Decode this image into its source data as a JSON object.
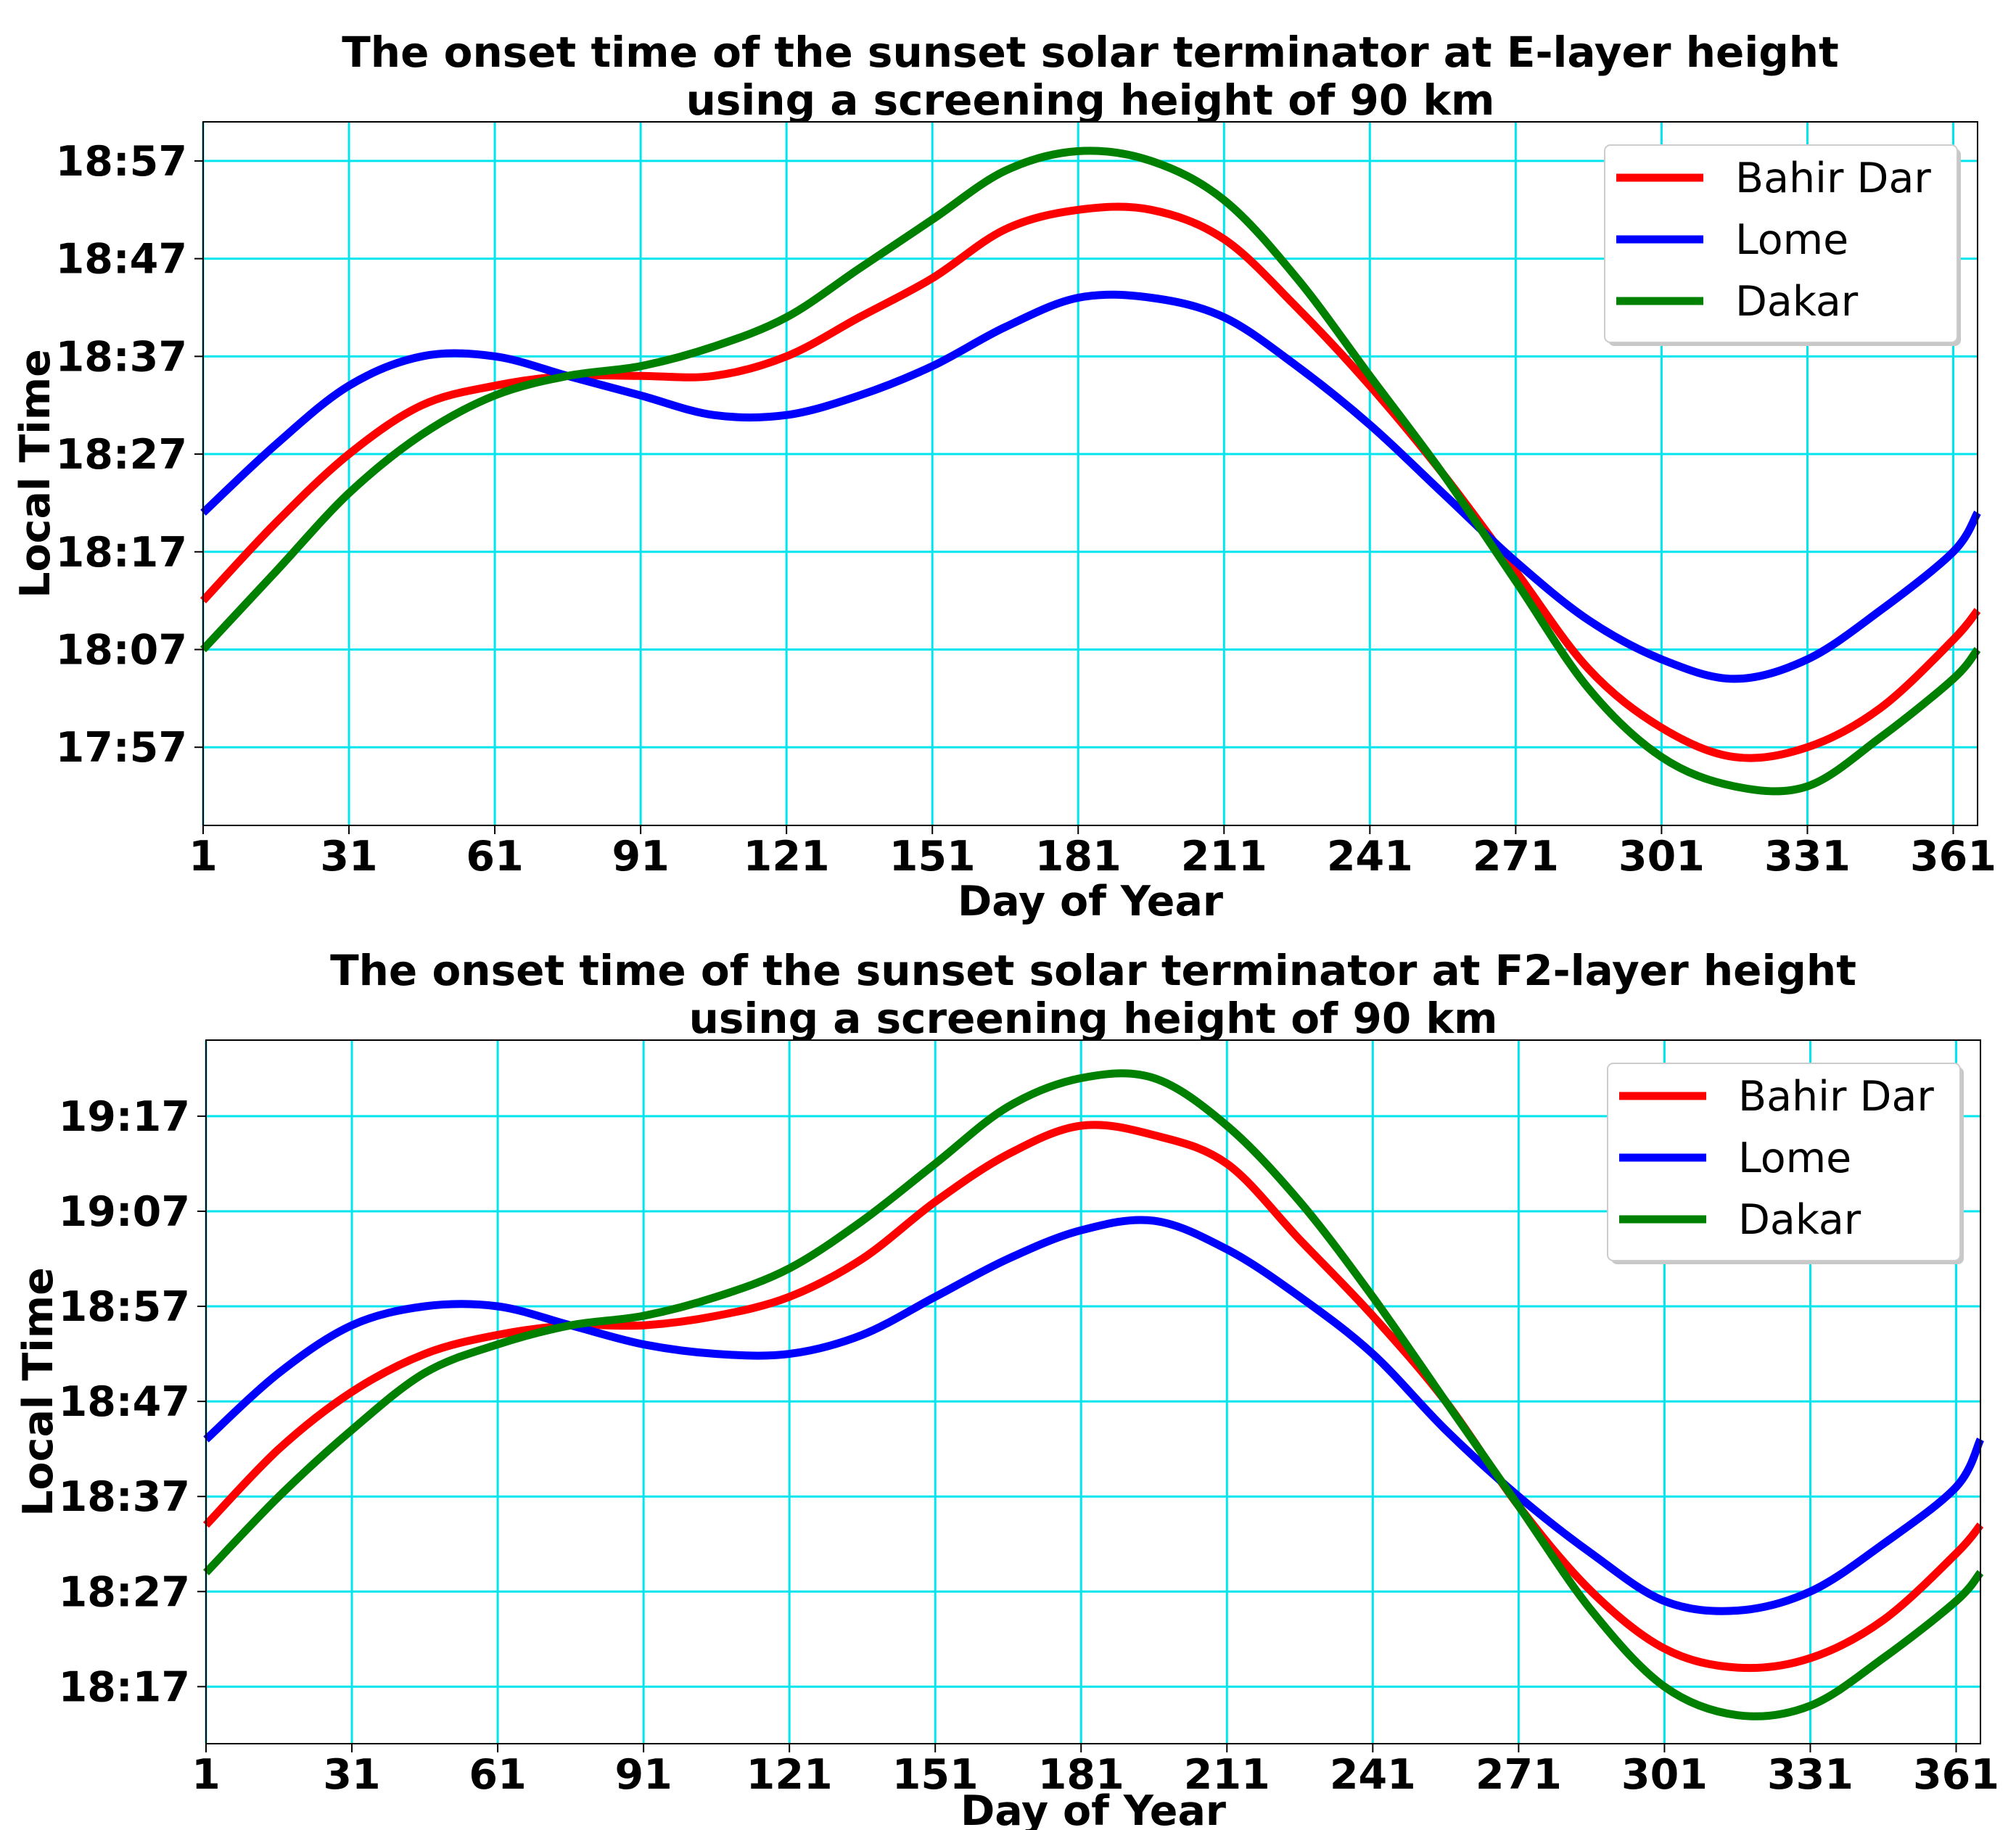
{
  "chart_data": [
    {
      "type": "line",
      "title": "The onset time of the sunset solar terminator at E-layer height",
      "subtitle": "using a screening height of 90 km",
      "xlabel": "Day of Year",
      "ylabel": "Local Time",
      "xlim": [
        1,
        366
      ],
      "xticks": [
        1,
        31,
        61,
        91,
        121,
        151,
        181,
        211,
        241,
        271,
        301,
        331,
        361
      ],
      "ylim": [
        "17:49",
        "19:01"
      ],
      "yticks": [
        "17:57",
        "18:07",
        "18:17",
        "18:27",
        "18:37",
        "18:47",
        "18:57"
      ],
      "grid": true,
      "grid_color": "#00e5ee",
      "legend_position": "top-right",
      "x": [
        1,
        16,
        31,
        46,
        61,
        76,
        91,
        106,
        121,
        136,
        151,
        166,
        181,
        196,
        211,
        226,
        241,
        256,
        271,
        286,
        301,
        316,
        331,
        346,
        361,
        366
      ],
      "series": [
        {
          "name": "Bahir Dar",
          "color": "#ff0000",
          "values": [
            "18:12",
            "18:20",
            "18:27",
            "18:32",
            "18:34",
            "18:35",
            "18:35",
            "18:35",
            "18:37",
            "18:41",
            "18:45",
            "18:50",
            "18:52",
            "18:52",
            "18:49",
            "18:42",
            "18:34",
            "18:25",
            "18:15",
            "18:05",
            "17:59",
            "17:56",
            "17:57",
            "18:01",
            "18:08",
            "18:11"
          ]
        },
        {
          "name": "Lome",
          "color": "#0000ff",
          "values": [
            "18:21",
            "18:28",
            "18:34",
            "18:37",
            "18:37",
            "18:35",
            "18:33",
            "18:31",
            "18:31",
            "18:33",
            "18:36",
            "18:40",
            "18:43",
            "18:43",
            "18:41",
            "18:36",
            "18:30",
            "18:23",
            "18:16",
            "18:10",
            "18:06",
            "18:04",
            "18:06",
            "18:11",
            "18:17",
            "18:21"
          ]
        },
        {
          "name": "Dakar",
          "color": "#008000",
          "values": [
            "18:07",
            "18:15",
            "18:23",
            "18:29",
            "18:33",
            "18:35",
            "18:36",
            "18:38",
            "18:41",
            "18:46",
            "18:51",
            "18:56",
            "18:58",
            "18:57",
            "18:53",
            "18:45",
            "18:35",
            "18:25",
            "18:14",
            "18:03",
            "17:56",
            "17:53",
            "17:53",
            "17:58",
            "18:04",
            "18:07"
          ]
        }
      ]
    },
    {
      "type": "line",
      "title": "The onset time of the sunset solar terminator at F2-layer height",
      "subtitle": "using a screening height of 90 km",
      "xlabel": "Day of Year",
      "ylabel": "Local Time",
      "xlim": [
        1,
        366
      ],
      "xticks": [
        1,
        31,
        61,
        91,
        121,
        151,
        181,
        211,
        241,
        271,
        301,
        331,
        361
      ],
      "ylim": [
        "18:11",
        "19:25"
      ],
      "yticks": [
        "18:17",
        "18:27",
        "18:37",
        "18:47",
        "18:57",
        "19:07",
        "19:17"
      ],
      "grid": true,
      "grid_color": "#00e5ee",
      "legend_position": "top-right",
      "x": [
        1,
        16,
        31,
        46,
        61,
        76,
        91,
        106,
        121,
        136,
        151,
        166,
        181,
        196,
        211,
        226,
        241,
        256,
        271,
        286,
        301,
        316,
        331,
        346,
        361,
        366
      ],
      "series": [
        {
          "name": "Bahir Dar",
          "color": "#ff0000",
          "values": [
            "18:34",
            "18:42",
            "18:48",
            "18:52",
            "18:54",
            "18:55",
            "18:55",
            "18:56",
            "18:58",
            "19:02",
            "19:08",
            "19:13",
            "19:16",
            "19:15",
            "19:12",
            "19:04",
            "18:56",
            "18:47",
            "18:36",
            "18:27",
            "18:21",
            "18:19",
            "18:20",
            "18:24",
            "18:31",
            "18:34"
          ]
        },
        {
          "name": "Lome",
          "color": "#0000ff",
          "values": [
            "18:43",
            "18:50",
            "18:55",
            "18:57",
            "18:57",
            "18:55",
            "18:53",
            "18:52",
            "18:52",
            "18:54",
            "18:58",
            "19:02",
            "19:05",
            "19:06",
            "19:03",
            "18:58",
            "18:52",
            "18:44",
            "18:37",
            "18:31",
            "18:26",
            "18:25",
            "18:27",
            "18:32",
            "18:38",
            "18:43"
          ]
        },
        {
          "name": "Dakar",
          "color": "#008000",
          "values": [
            "18:29",
            "18:37",
            "18:44",
            "18:50",
            "18:53",
            "18:55",
            "18:56",
            "18:58",
            "19:01",
            "19:06",
            "19:12",
            "19:18",
            "19:21",
            "19:21",
            "19:16",
            "19:08",
            "18:58",
            "18:47",
            "18:36",
            "18:25",
            "18:17",
            "18:14",
            "18:15",
            "18:20",
            "18:26",
            "18:29"
          ]
        }
      ]
    }
  ]
}
